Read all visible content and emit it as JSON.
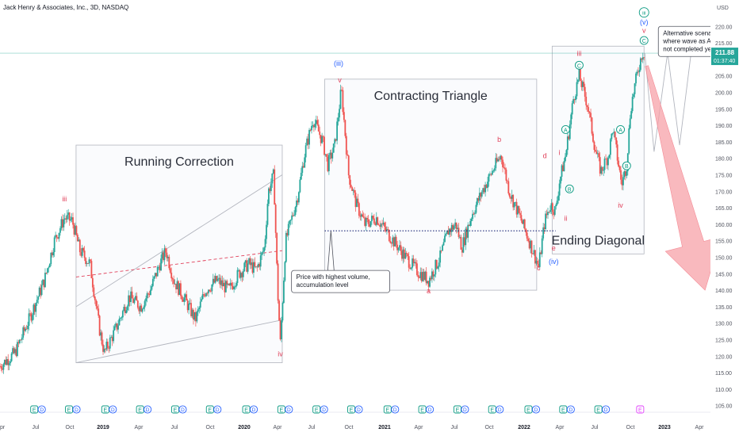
{
  "header": {
    "title": "Jack Henry & Associates, Inc., 3D, NASDAQ"
  },
  "price_axis": {
    "currency": "USD",
    "ticks": [
      225,
      220,
      215,
      210,
      205,
      200,
      195,
      190,
      185,
      180,
      175,
      170,
      165,
      160,
      155,
      150,
      145,
      140,
      135,
      130,
      125,
      120,
      115,
      110,
      105
    ],
    "tick_labels": [
      "225.00",
      "220.00",
      "215.00",
      "210.00",
      "205.00",
      "200.00",
      "195.00",
      "190.00",
      "185.00",
      "180.00",
      "175.00",
      "170.00",
      "165.00",
      "160.00",
      "155.00",
      "150.00",
      "145.00",
      "140.00",
      "135.00",
      "130.00",
      "125.00",
      "120.00",
      "115.00",
      "110.00",
      "105.00"
    ],
    "last_price": "211.88",
    "countdown": "01:37:40",
    "last_price_color": "#26a69a"
  },
  "time_axis": {
    "labels": [
      "pr",
      "Jul",
      "Oct",
      "2019",
      "Apr",
      "Jul",
      "Oct",
      "2020",
      "Apr",
      "Jul",
      "Oct",
      "2021",
      "Apr",
      "Jul",
      "Oct",
      "2022",
      "Apr",
      "Jul",
      "Oct",
      "2023",
      "Apr"
    ],
    "bold_labels": [
      "2019",
      "2020",
      "2021",
      "2022",
      "2023"
    ]
  },
  "colors": {
    "up": "#26a69a",
    "down": "#ef5350",
    "wave_red": "#e0405a",
    "wave_blue": "#2962ff",
    "wave_green": "#089981",
    "box": "#b2b5be",
    "arrow": "#f7a1a8"
  },
  "chart_data": {
    "type": "candlestick",
    "title": "Jack Henry & Associates, Inc., 3D, NASDAQ",
    "ylim": [
      103,
      228
    ],
    "xlim": [
      "2018-04-01",
      "2023-04-15"
    ],
    "path": [
      [
        "2018-04-01",
        117
      ],
      [
        "2018-05-10",
        121
      ],
      [
        "2018-06-15",
        131
      ],
      [
        "2018-07-25",
        143
      ],
      [
        "2018-08-20",
        155
      ],
      [
        "2018-09-15",
        162
      ],
      [
        "2018-10-05",
        161
      ],
      [
        "2018-10-25",
        152
      ],
      [
        "2018-11-20",
        148
      ],
      [
        "2018-12-15",
        128
      ],
      [
        "2018-12-27",
        121
      ],
      [
        "2019-01-25",
        128
      ],
      [
        "2019-03-01",
        138
      ],
      [
        "2019-04-01",
        135
      ],
      [
        "2019-04-25",
        140
      ],
      [
        "2019-05-20",
        148
      ],
      [
        "2019-06-05",
        152
      ],
      [
        "2019-06-25",
        143
      ],
      [
        "2019-07-20",
        138
      ],
      [
        "2019-08-20",
        131
      ],
      [
        "2019-09-15",
        140
      ],
      [
        "2019-10-15",
        143
      ],
      [
        "2019-11-15",
        140
      ],
      [
        "2019-12-10",
        145
      ],
      [
        "2020-01-05",
        148
      ],
      [
        "2020-01-25",
        146
      ],
      [
        "2020-02-15",
        153
      ],
      [
        "2020-02-25",
        170
      ],
      [
        "2020-03-10",
        175
      ],
      [
        "2020-03-20",
        140
      ],
      [
        "2020-03-27",
        124
      ],
      [
        "2020-04-10",
        155
      ],
      [
        "2020-05-10",
        168
      ],
      [
        "2020-05-30",
        182
      ],
      [
        "2020-06-20",
        192
      ],
      [
        "2020-07-15",
        185
      ],
      [
        "2020-07-28",
        178
      ],
      [
        "2020-08-15",
        184
      ],
      [
        "2020-09-01",
        201
      ],
      [
        "2020-09-20",
        175
      ],
      [
        "2020-10-10",
        166
      ],
      [
        "2020-11-01",
        160
      ],
      [
        "2020-12-01",
        162
      ],
      [
        "2021-01-01",
        157
      ],
      [
        "2021-02-15",
        150
      ],
      [
        "2021-03-15",
        146
      ],
      [
        "2021-04-15",
        143
      ],
      [
        "2021-05-15",
        150
      ],
      [
        "2021-06-05",
        158
      ],
      [
        "2021-06-25",
        160
      ],
      [
        "2021-07-10",
        153
      ],
      [
        "2021-08-05",
        163
      ],
      [
        "2021-09-01",
        170
      ],
      [
        "2021-10-01",
        177
      ],
      [
        "2021-10-20",
        181
      ],
      [
        "2021-11-10",
        170
      ],
      [
        "2021-12-15",
        160
      ],
      [
        "2022-01-10",
        152
      ],
      [
        "2022-01-25",
        147
      ],
      [
        "2022-02-10",
        161
      ],
      [
        "2022-02-25",
        166
      ],
      [
        "2022-03-10",
        164
      ],
      [
        "2022-03-20",
        173
      ],
      [
        "2022-04-05",
        181
      ],
      [
        "2022-04-25",
        198
      ],
      [
        "2022-05-10",
        205
      ],
      [
        "2022-06-01",
        196
      ],
      [
        "2022-06-20",
        183
      ],
      [
        "2022-07-05",
        176
      ],
      [
        "2022-07-25",
        181
      ],
      [
        "2022-08-05",
        189
      ],
      [
        "2022-08-20",
        178
      ],
      [
        "2022-08-28",
        172
      ],
      [
        "2022-09-10",
        178
      ],
      [
        "2022-09-20",
        195
      ],
      [
        "2022-10-01",
        202
      ],
      [
        "2022-10-10",
        207
      ],
      [
        "2022-10-20",
        212
      ],
      [
        "2022-10-27",
        211.88
      ]
    ],
    "band_lines": [
      {
        "points": [
          [
            "2018-10-15",
            135
          ],
          [
            "2020-04-01",
            175
          ]
        ],
        "color": "#b2b5be",
        "style": "solid"
      },
      {
        "points": [
          [
            "2018-10-15",
            118
          ],
          [
            "2020-04-01",
            131
          ]
        ],
        "color": "#b2b5be",
        "style": "solid"
      },
      {
        "points": [
          [
            "2018-10-15",
            144
          ],
          [
            "2020-04-01",
            152
          ]
        ],
        "color": "#e0405a",
        "style": "dashed"
      }
    ],
    "level_line": {
      "value": 158,
      "from": "2020-07-20",
      "to": "2022-03-10",
      "color": "#1e2a78",
      "style": "dotted"
    },
    "boxes": [
      {
        "label": "Running Correction",
        "x": [
          "2018-10-15",
          "2020-04-01"
        ],
        "y": [
          118,
          184
        ]
      },
      {
        "label": "Contracting Triangle",
        "x": [
          "2020-07-20",
          "2022-01-20"
        ],
        "y": [
          140,
          204
        ]
      },
      {
        "label": "Ending Diagonal",
        "x": [
          "2022-03-01",
          "2022-10-25"
        ],
        "y": [
          151,
          214
        ]
      }
    ],
    "wave_labels": [
      {
        "text": "iii",
        "x": "2018-09-15",
        "y": 167,
        "color": "#e0405a"
      },
      {
        "text": "iv",
        "x": "2020-03-27",
        "y": 120,
        "color": "#e0405a"
      },
      {
        "text": "(iii)",
        "x": "2020-08-25",
        "y": 208,
        "color": "#2962ff"
      },
      {
        "text": "v",
        "x": "2020-08-28",
        "y": 203,
        "color": "#e0405a"
      },
      {
        "text": "a",
        "x": "2021-04-15",
        "y": 139,
        "color": "#e0405a"
      },
      {
        "text": "b",
        "x": "2021-10-15",
        "y": 185,
        "color": "#e0405a"
      },
      {
        "text": "c",
        "x": "2022-01-25",
        "y": 146,
        "color": "#e0405a"
      },
      {
        "text": "d",
        "x": "2022-02-10",
        "y": 180,
        "color": "#e0405a"
      },
      {
        "text": "e",
        "x": "2022-03-05",
        "y": 152,
        "color": "#e0405a"
      },
      {
        "text": "(iv)",
        "x": "2022-03-05",
        "y": 148,
        "color": "#2962ff"
      },
      {
        "text": "i",
        "x": "2022-03-20",
        "y": 181,
        "color": "#e0405a"
      },
      {
        "text": "ii",
        "x": "2022-04-05",
        "y": 161,
        "color": "#e0405a"
      },
      {
        "text": "iii",
        "x": "2022-05-10",
        "y": 211,
        "color": "#e0405a"
      },
      {
        "text": "iv",
        "x": "2022-08-25",
        "y": 165,
        "color": "#e0405a"
      },
      {
        "text": "v",
        "x": "2022-10-25",
        "y": 218,
        "color": "#e0405a"
      },
      {
        "text": "(v)",
        "x": "2022-10-25",
        "y": 220.5,
        "color": "#2962ff"
      },
      {
        "text": "iii",
        "x": "2022-10-25",
        "y": 223.5,
        "color": "#089981",
        "circle": true
      },
      {
        "text": "C",
        "x": "2022-10-25",
        "y": 215,
        "color": "#089981",
        "circle": true
      },
      {
        "text": "C",
        "x": "2022-05-10",
        "y": 207.5,
        "color": "#089981",
        "circle": true
      },
      {
        "text": "A",
        "x": "2022-04-05",
        "y": 188,
        "color": "#089981",
        "circle": true
      },
      {
        "text": "B",
        "x": "2022-04-15",
        "y": 170,
        "color": "#089981",
        "circle": true
      },
      {
        "text": "A",
        "x": "2022-08-25",
        "y": 188,
        "color": "#089981",
        "circle": true
      },
      {
        "text": "B",
        "x": "2022-09-10",
        "y": 177,
        "color": "#089981",
        "circle": true
      }
    ],
    "callouts": [
      {
        "lines": [
          "Price with highest volume,",
          "accumulation level"
        ],
        "x": "2020-04-25",
        "y": 146,
        "anchor": [
          "2020-08-05",
          158
        ]
      },
      {
        "lines": [
          "Alternative scenario",
          "where wave as ABC has",
          "not completed yet"
        ],
        "x": "2022-12-01",
        "y": 220,
        "anchor": [
          "2022-12-20",
          211
        ]
      }
    ],
    "alt_scenario": [
      [
        "2022-10-27",
        211.88
      ],
      [
        "2022-11-20",
        182
      ],
      [
        "2022-12-25",
        212
      ],
      [
        "2023-01-25",
        184
      ],
      [
        "2023-02-25",
        213
      ]
    ],
    "down_arrow": {
      "from": [
        "2022-11-01",
        208
      ],
      "to": [
        "2023-04-01",
        140
      ]
    },
    "markers": {
      "dates": [
        "2018-07-10",
        "2018-10-08",
        "2019-01-10",
        "2019-04-10",
        "2019-07-10",
        "2019-10-08",
        "2020-01-10",
        "2020-04-10",
        "2020-07-10",
        "2020-10-08",
        "2021-01-10",
        "2021-04-10",
        "2021-07-10",
        "2021-10-08",
        "2022-01-10",
        "2022-04-10",
        "2022-07-10"
      ],
      "glyphs": [
        "E",
        "D"
      ],
      "final": {
        "date": "2022-10-15",
        "glyph": "E",
        "color": "#e040fb"
      }
    }
  }
}
